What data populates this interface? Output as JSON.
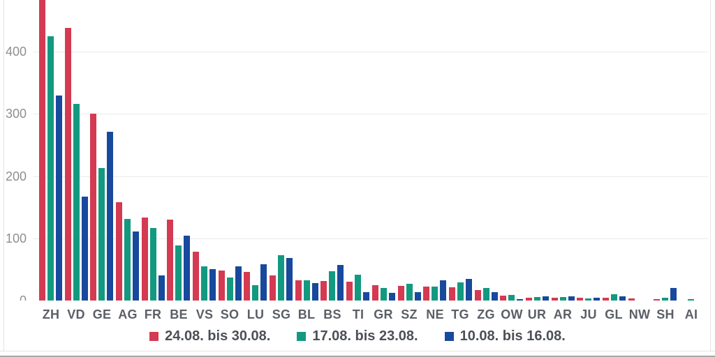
{
  "chart_data": {
    "type": "bar",
    "title": "",
    "categories": [
      "ZH",
      "VD",
      "GE",
      "AG",
      "FR",
      "BE",
      "VS",
      "SO",
      "LU",
      "SG",
      "BL",
      "BS",
      "TI",
      "GR",
      "SZ",
      "NE",
      "TG",
      "ZG",
      "OW",
      "UR",
      "AR",
      "JU",
      "GL",
      "NW",
      "SH",
      "AI"
    ],
    "series": [
      {
        "name": "24.08. bis 30.08.",
        "color": "#d43a51",
        "values": [
          490,
          438,
          300,
          158,
          133,
          130,
          78,
          48,
          46,
          40,
          33,
          31,
          30,
          25,
          24,
          22,
          21,
          17,
          8,
          5,
          4,
          5,
          4,
          3,
          2,
          0
        ]
      },
      {
        "name": "17.08. bis 23.08.",
        "color": "#13997f",
        "values": [
          425,
          316,
          213,
          131,
          117,
          89,
          55,
          37,
          25,
          73,
          32,
          47,
          41,
          20,
          27,
          22,
          29,
          20,
          9,
          6,
          6,
          3,
          10,
          0,
          5,
          2
        ]
      },
      {
        "name": "10.08. bis 16.08.",
        "color": "#17499d",
        "values": [
          330,
          167,
          271,
          111,
          40,
          104,
          50,
          55,
          58,
          68,
          28,
          57,
          14,
          12,
          13,
          32,
          35,
          13,
          2,
          7,
          7,
          4,
          7,
          0,
          20,
          0
        ]
      }
    ],
    "y_ticks": [
      0,
      100,
      200,
      300,
      400
    ],
    "y_tick_labels": [
      "0",
      "100",
      "200",
      "300",
      "400"
    ],
    "y_max_visible": 483,
    "xlabel": "",
    "ylabel": "",
    "grid": true,
    "legend_position": "bottom"
  },
  "colors": {
    "gridline": "#eaeaea",
    "baseline": "#d6d6d6",
    "y_tick_text": "#8f8f8f",
    "x_tick_text": "#5b5f66",
    "legend_text": "#4c5056",
    "background": "#ffffff"
  }
}
